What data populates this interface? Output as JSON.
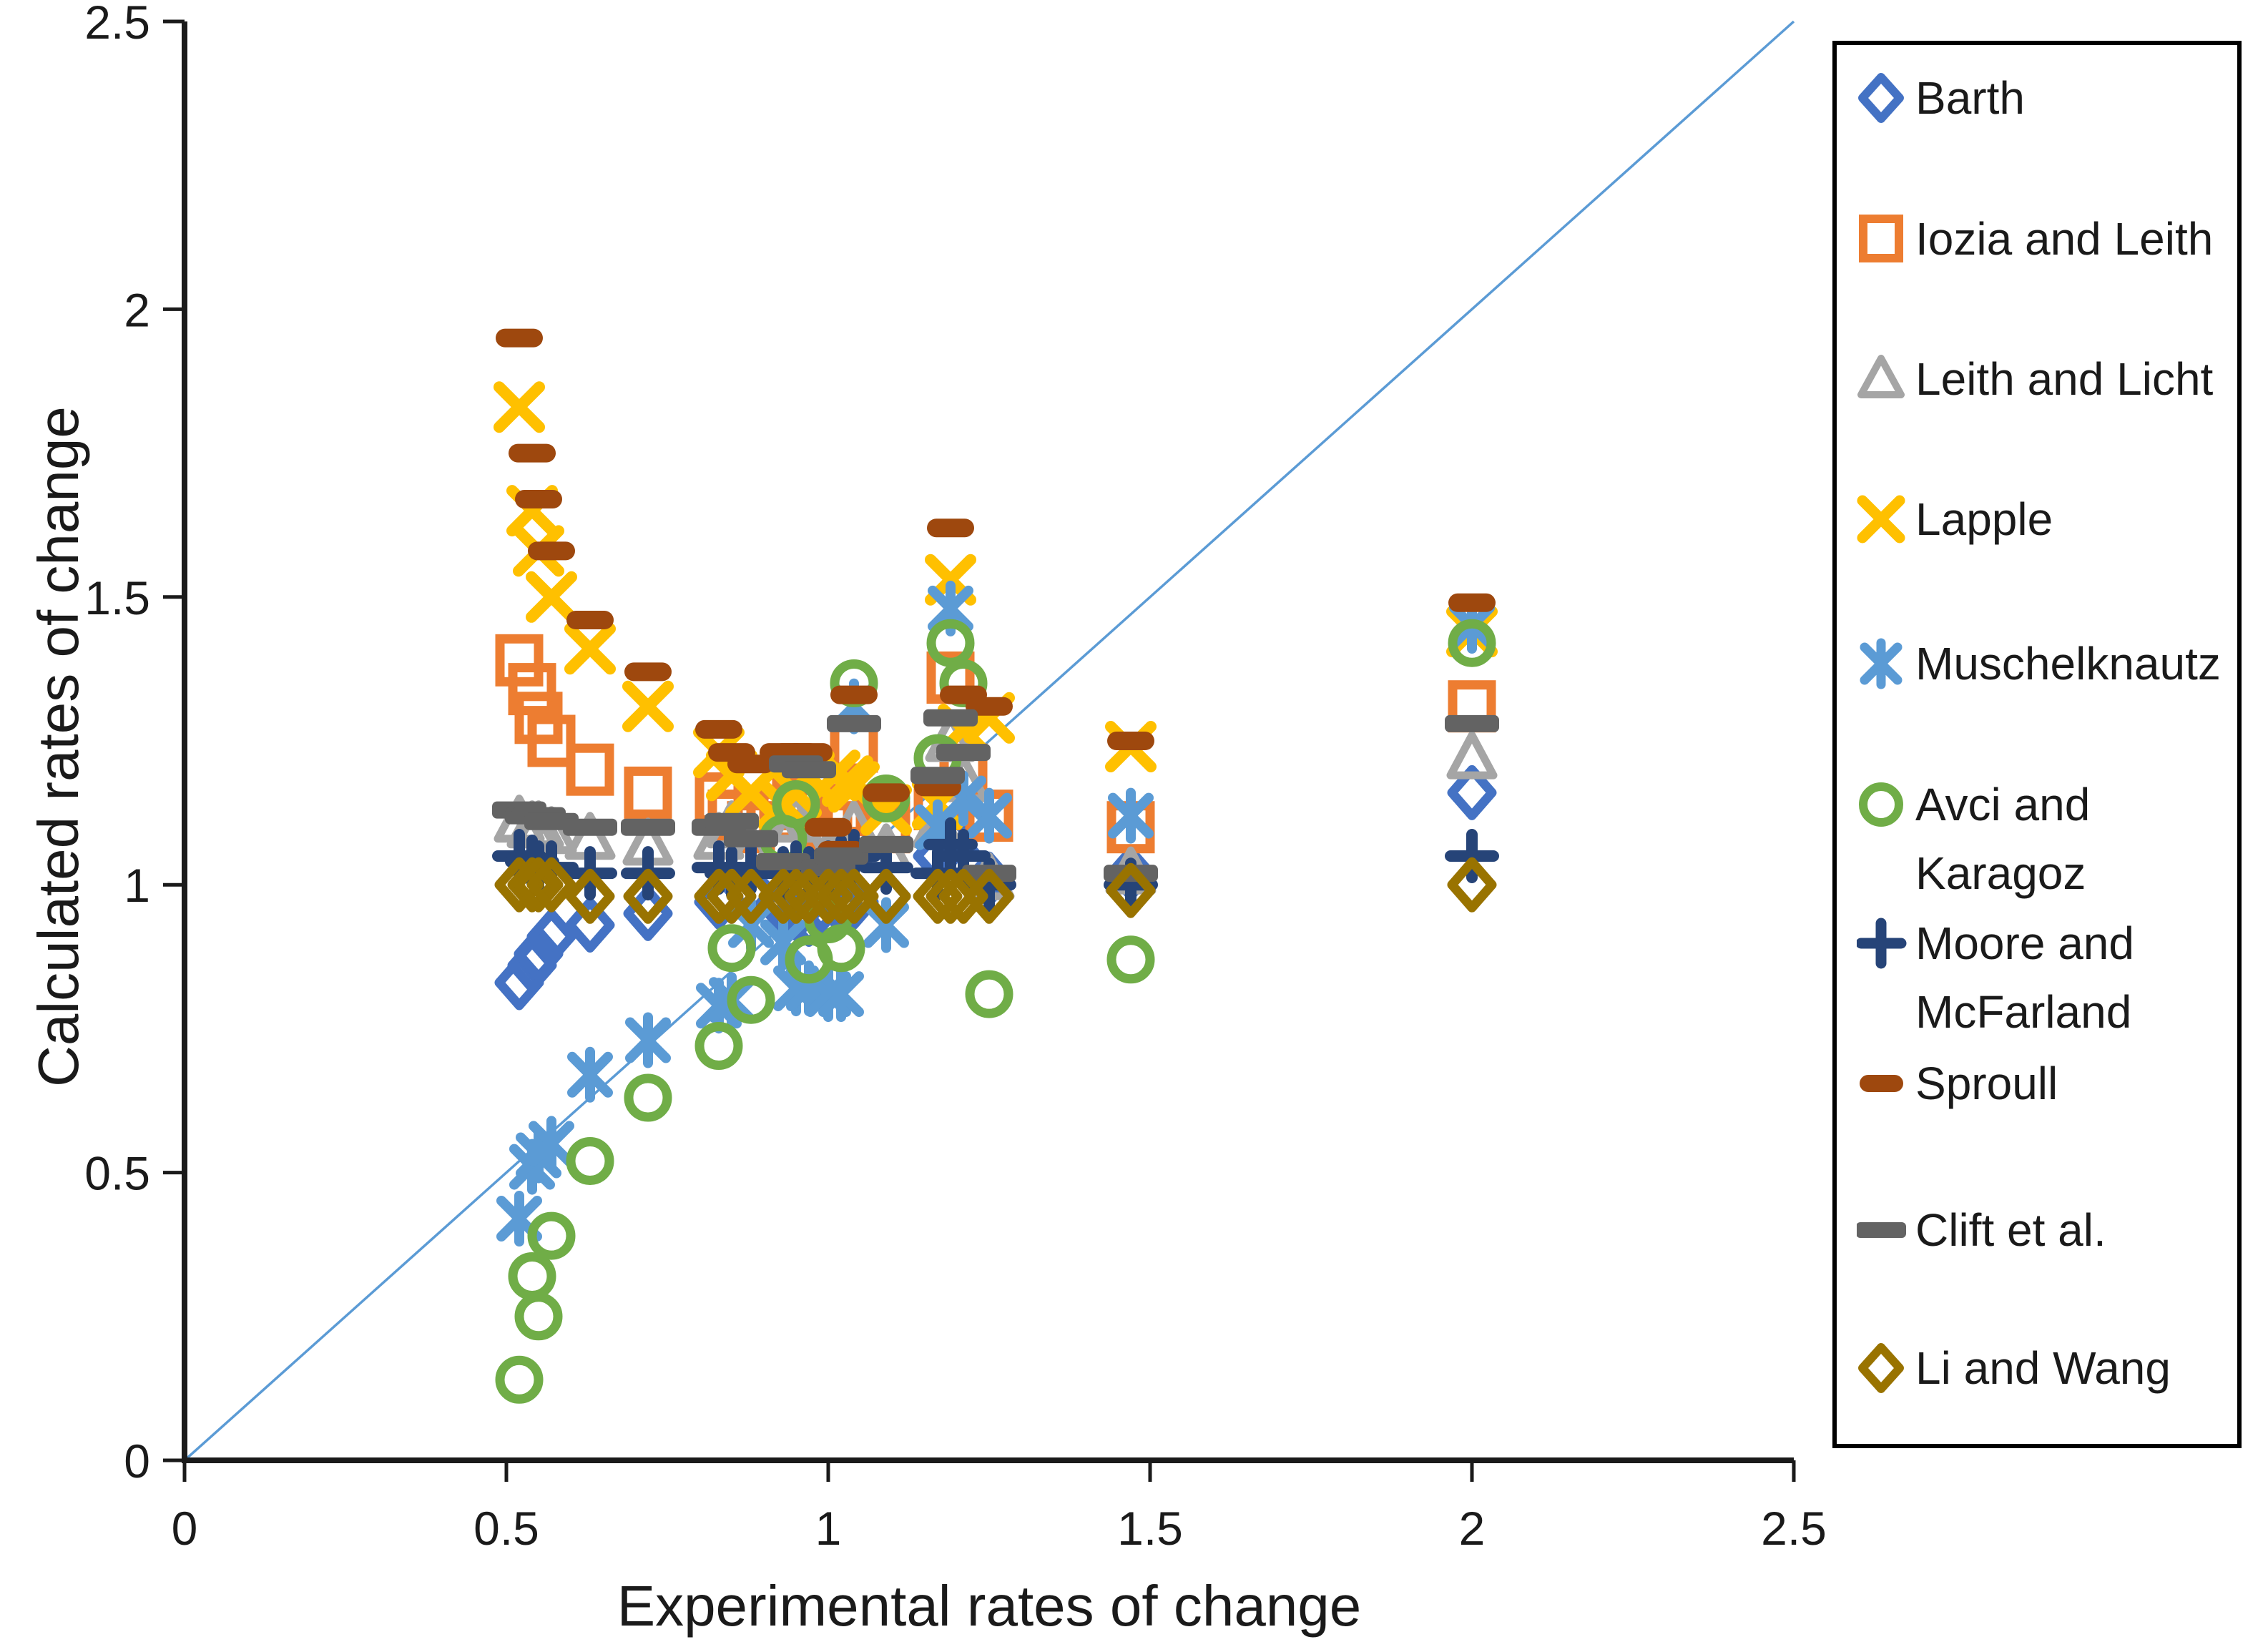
{
  "chart_data": {
    "type": "scatter",
    "title": "",
    "xlabel": "Experimental rates of change",
    "ylabel": "Calculated rates of change",
    "xlim": [
      0,
      2.5
    ],
    "ylim": [
      0,
      2.5
    ],
    "x_tick_labels": [
      "0",
      "0.5",
      "1",
      "1.5",
      "2",
      "2.5"
    ],
    "y_tick_labels": [
      "0",
      "0.5",
      "1",
      "1.5",
      "2",
      "2.5"
    ],
    "x_tick_values": [
      0,
      0.5,
      1,
      1.5,
      2,
      2.5
    ],
    "y_tick_values": [
      0,
      0.5,
      1,
      1.5,
      2,
      2.5
    ],
    "grid": false,
    "legend_position": "right",
    "identity_line": {
      "from": [
        0,
        0
      ],
      "to": [
        2.5,
        2.5
      ],
      "color": "#5B9BD5"
    },
    "axis_color": "#1a1a1a",
    "series": [
      {
        "name": "Barth",
        "marker": "diamond",
        "color": "#4472C4",
        "points": [
          [
            0.52,
            0.83
          ],
          [
            0.54,
            0.86
          ],
          [
            0.55,
            0.88
          ],
          [
            0.57,
            0.91
          ],
          [
            0.63,
            0.93
          ],
          [
            0.72,
            0.95
          ],
          [
            0.83,
            0.97
          ],
          [
            0.85,
            0.98
          ],
          [
            0.88,
            0.99
          ],
          [
            0.93,
            0.96
          ],
          [
            0.95,
            0.95
          ],
          [
            0.97,
            0.94
          ],
          [
            1.0,
            0.95
          ],
          [
            1.02,
            0.96
          ],
          [
            1.04,
            0.97
          ],
          [
            1.09,
            0.98
          ],
          [
            1.17,
            1.05
          ],
          [
            1.19,
            1.08
          ],
          [
            1.21,
            1.04
          ],
          [
            1.25,
            1.01
          ],
          [
            1.47,
            1.02
          ],
          [
            2.0,
            1.16
          ]
        ]
      },
      {
        "name": "Iozia and Leith",
        "marker": "square",
        "color": "#ED7D31",
        "points": [
          [
            0.52,
            1.39
          ],
          [
            0.54,
            1.34
          ],
          [
            0.55,
            1.29
          ],
          [
            0.57,
            1.25
          ],
          [
            0.63,
            1.2
          ],
          [
            0.72,
            1.16
          ],
          [
            0.83,
            1.15
          ],
          [
            0.85,
            1.12
          ],
          [
            0.88,
            1.1
          ],
          [
            0.93,
            1.12
          ],
          [
            0.95,
            1.14
          ],
          [
            0.97,
            1.16
          ],
          [
            1.0,
            1.1
          ],
          [
            1.02,
            1.13
          ],
          [
            1.04,
            1.24
          ],
          [
            1.09,
            1.1
          ],
          [
            1.17,
            1.14
          ],
          [
            1.19,
            1.36
          ],
          [
            1.21,
            1.2
          ],
          [
            1.25,
            1.12
          ],
          [
            1.47,
            1.1
          ],
          [
            2.0,
            1.31
          ]
        ]
      },
      {
        "name": "Leith and Licht",
        "marker": "triangle",
        "color": "#A5A5A5",
        "points": [
          [
            0.52,
            1.11
          ],
          [
            0.54,
            1.1
          ],
          [
            0.55,
            1.1
          ],
          [
            0.57,
            1.09
          ],
          [
            0.63,
            1.08
          ],
          [
            0.72,
            1.07
          ],
          [
            0.83,
            1.08
          ],
          [
            0.85,
            1.1
          ],
          [
            0.88,
            1.06
          ],
          [
            0.93,
            1.08
          ],
          [
            0.95,
            1.11
          ],
          [
            0.97,
            1.06
          ],
          [
            1.0,
            1.05
          ],
          [
            1.02,
            1.06
          ],
          [
            1.04,
            1.1
          ],
          [
            1.09,
            1.06
          ],
          [
            1.17,
            1.1
          ],
          [
            1.19,
            1.25
          ],
          [
            1.21,
            1.18
          ],
          [
            1.25,
            1.01
          ],
          [
            1.47,
            1.02
          ],
          [
            2.0,
            1.22
          ]
        ]
      },
      {
        "name": "Lapple",
        "marker": "x",
        "color": "#FFC000",
        "points": [
          [
            0.52,
            1.83
          ],
          [
            0.54,
            1.65
          ],
          [
            0.55,
            1.58
          ],
          [
            0.57,
            1.5
          ],
          [
            0.63,
            1.41
          ],
          [
            0.72,
            1.31
          ],
          [
            0.83,
            1.23
          ],
          [
            0.85,
            1.19
          ],
          [
            0.88,
            1.16
          ],
          [
            0.93,
            1.14
          ],
          [
            0.95,
            1.16
          ],
          [
            0.97,
            1.19
          ],
          [
            1.01,
            1.19
          ],
          [
            1.03,
            1.18
          ],
          [
            1.04,
            1.17
          ],
          [
            1.09,
            1.13
          ],
          [
            1.17,
            1.14
          ],
          [
            1.19,
            1.53
          ],
          [
            1.21,
            1.27
          ],
          [
            1.25,
            1.29
          ],
          [
            1.47,
            1.24
          ],
          [
            2.0,
            1.44
          ]
        ]
      },
      {
        "name": "Muschelknautz",
        "marker": "star",
        "color": "#5B9BD5",
        "points": [
          [
            0.52,
            0.42
          ],
          [
            0.54,
            0.51
          ],
          [
            0.55,
            0.53
          ],
          [
            0.57,
            0.55
          ],
          [
            0.63,
            0.67
          ],
          [
            0.72,
            0.73
          ],
          [
            0.83,
            0.79
          ],
          [
            0.85,
            0.8
          ],
          [
            0.88,
            0.93
          ],
          [
            0.93,
            0.9
          ],
          [
            0.95,
            0.82
          ],
          [
            0.97,
            0.82
          ],
          [
            1.0,
            0.81
          ],
          [
            1.02,
            0.81
          ],
          [
            1.04,
            1.31
          ],
          [
            1.09,
            0.93
          ],
          [
            1.17,
            1.1
          ],
          [
            1.19,
            1.48
          ],
          [
            1.21,
            1.15
          ],
          [
            1.25,
            1.12
          ],
          [
            1.47,
            1.12
          ],
          [
            2.0,
            1.45
          ]
        ]
      },
      {
        "name": "Avci and Karagoz",
        "marker": "circle",
        "color": "#70AD47",
        "points": [
          [
            0.52,
            0.14
          ],
          [
            0.54,
            0.32
          ],
          [
            0.55,
            0.25
          ],
          [
            0.57,
            0.39
          ],
          [
            0.63,
            0.52
          ],
          [
            0.72,
            0.63
          ],
          [
            0.83,
            0.72
          ],
          [
            0.85,
            0.89
          ],
          [
            0.88,
            0.8
          ],
          [
            0.93,
            1.08
          ],
          [
            0.95,
            1.14
          ],
          [
            0.97,
            0.87
          ],
          [
            1.0,
            0.94
          ],
          [
            1.02,
            0.89
          ],
          [
            1.04,
            1.35
          ],
          [
            1.09,
            1.15
          ],
          [
            1.17,
            1.22
          ],
          [
            1.19,
            1.42
          ],
          [
            1.21,
            1.35
          ],
          [
            1.25,
            0.81
          ],
          [
            1.47,
            0.87
          ],
          [
            2.0,
            1.42
          ]
        ]
      },
      {
        "name": "Moore and McFarland",
        "marker": "plus",
        "color": "#264478",
        "points": [
          [
            0.52,
            1.05
          ],
          [
            0.54,
            1.04
          ],
          [
            0.55,
            1.03
          ],
          [
            0.57,
            1.03
          ],
          [
            0.63,
            1.02
          ],
          [
            0.72,
            1.02
          ],
          [
            0.83,
            1.03
          ],
          [
            0.85,
            1.02
          ],
          [
            0.88,
            1.03
          ],
          [
            0.93,
            1.02
          ],
          [
            0.95,
            1.03
          ],
          [
            0.97,
            1.02
          ],
          [
            1.0,
            1.03
          ],
          [
            1.02,
            1.04
          ],
          [
            1.04,
            1.05
          ],
          [
            1.09,
            1.03
          ],
          [
            1.17,
            1.02
          ],
          [
            1.19,
            1.07
          ],
          [
            1.21,
            1.05
          ],
          [
            1.25,
            1.0
          ],
          [
            1.47,
            1.0
          ],
          [
            2.0,
            1.05
          ]
        ]
      },
      {
        "name": "Sproull",
        "marker": "dash-short",
        "color": "#9E480E",
        "points": [
          [
            0.52,
            1.95
          ],
          [
            0.54,
            1.75
          ],
          [
            0.55,
            1.67
          ],
          [
            0.57,
            1.58
          ],
          [
            0.63,
            1.46
          ],
          [
            0.72,
            1.37
          ],
          [
            0.83,
            1.27
          ],
          [
            0.85,
            1.23
          ],
          [
            0.88,
            1.21
          ],
          [
            0.93,
            1.23
          ],
          [
            0.95,
            1.23
          ],
          [
            0.97,
            1.23
          ],
          [
            1.0,
            1.1
          ],
          [
            1.02,
            1.06
          ],
          [
            1.04,
            1.33
          ],
          [
            1.09,
            1.16
          ],
          [
            1.17,
            1.17
          ],
          [
            1.19,
            1.62
          ],
          [
            1.21,
            1.33
          ],
          [
            1.25,
            1.31
          ],
          [
            1.47,
            1.25
          ],
          [
            2.0,
            1.49
          ]
        ]
      },
      {
        "name": "Clift et al.",
        "marker": "dash-long",
        "color": "#636363",
        "points": [
          [
            0.52,
            1.13
          ],
          [
            0.54,
            1.12
          ],
          [
            0.55,
            1.12
          ],
          [
            0.57,
            1.11
          ],
          [
            0.63,
            1.1
          ],
          [
            0.72,
            1.1
          ],
          [
            0.83,
            1.1
          ],
          [
            0.85,
            1.11
          ],
          [
            0.88,
            1.08
          ],
          [
            0.93,
            1.04
          ],
          [
            0.95,
            1.21
          ],
          [
            0.97,
            1.2
          ],
          [
            1.0,
            1.03
          ],
          [
            1.02,
            1.05
          ],
          [
            1.04,
            1.28
          ],
          [
            1.09,
            1.07
          ],
          [
            1.17,
            1.19
          ],
          [
            1.19,
            1.29
          ],
          [
            1.21,
            1.23
          ],
          [
            1.25,
            1.02
          ],
          [
            1.47,
            1.02
          ],
          [
            2.0,
            1.28
          ]
        ]
      },
      {
        "name": "Li and Wang",
        "marker": "diamond",
        "color": "#997300",
        "points": [
          [
            0.52,
            1.0
          ],
          [
            0.54,
            1.0
          ],
          [
            0.55,
            1.0
          ],
          [
            0.57,
            1.0
          ],
          [
            0.63,
            0.98
          ],
          [
            0.72,
            0.98
          ],
          [
            0.83,
            0.98
          ],
          [
            0.85,
            0.98
          ],
          [
            0.88,
            0.98
          ],
          [
            0.93,
            0.98
          ],
          [
            0.95,
            0.98
          ],
          [
            0.97,
            0.98
          ],
          [
            1.0,
            0.98
          ],
          [
            1.02,
            0.98
          ],
          [
            1.04,
            0.98
          ],
          [
            1.09,
            0.98
          ],
          [
            1.17,
            0.98
          ],
          [
            1.19,
            0.98
          ],
          [
            1.21,
            0.98
          ],
          [
            1.25,
            0.98
          ],
          [
            1.47,
            0.99
          ],
          [
            2.0,
            1.0
          ]
        ]
      }
    ]
  },
  "legend": {
    "entries": [
      {
        "label": "Barth",
        "display": "Barth"
      },
      {
        "label": "Iozia and Leith",
        "display": "Iozia and Leith"
      },
      {
        "label": "Leith and Licht",
        "display": "Leith and Licht"
      },
      {
        "label": "Lapple",
        "display": "Lapple"
      },
      {
        "label": "Muschelknautz",
        "display": "Muschelknautz"
      },
      {
        "label": "Avci and Karagoz",
        "display": "Avci and\nKaragoz"
      },
      {
        "label": "Moore and McFarland",
        "display": "Moore and\nMcFarland"
      },
      {
        "label": "Sproull",
        "display": "Sproull"
      },
      {
        "label": "Clift et al.",
        "display": "Clift et al."
      },
      {
        "label": "Li and Wang",
        "display": "Li and Wang"
      }
    ]
  }
}
